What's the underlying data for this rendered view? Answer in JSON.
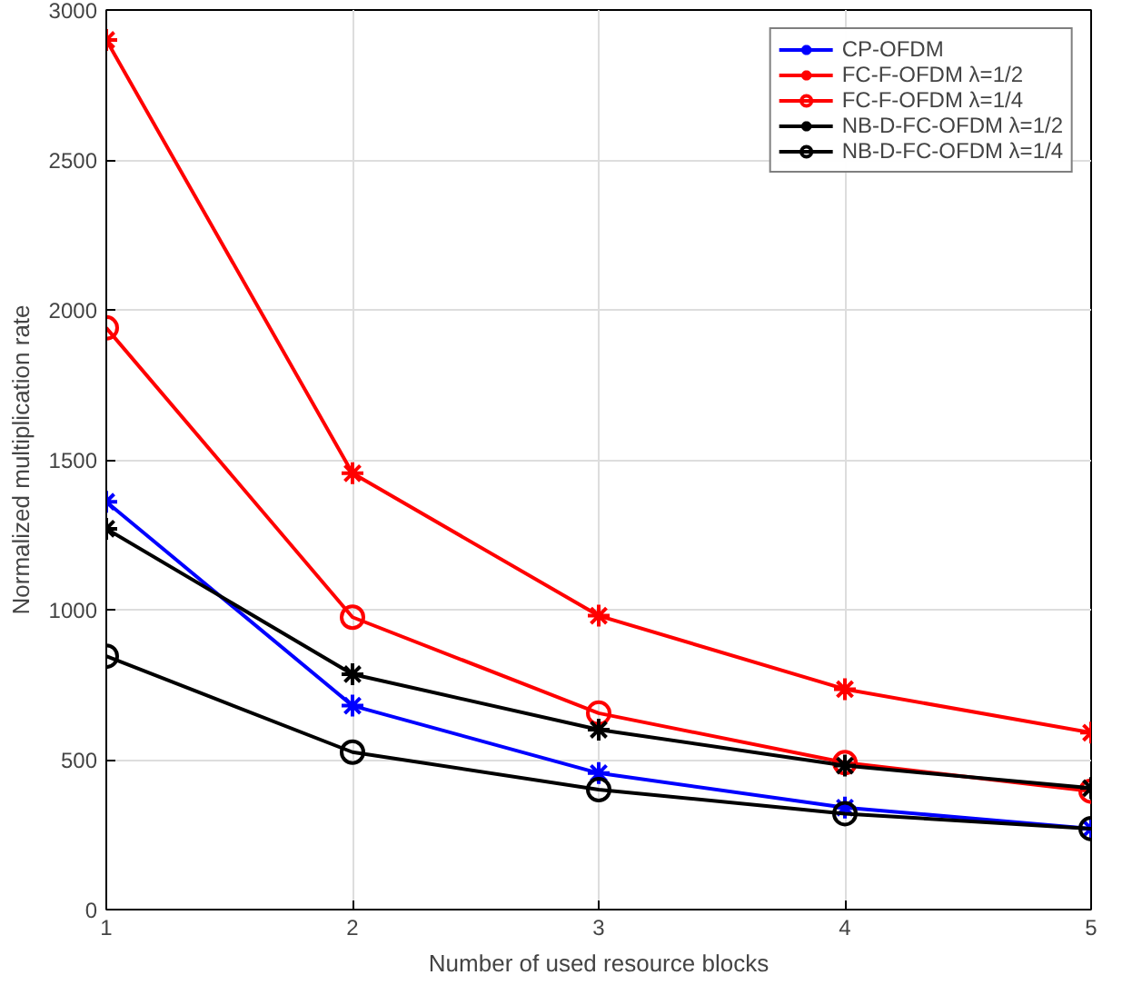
{
  "chart_data": {
    "type": "line",
    "xlabel": "Number of used resource blocks",
    "ylabel": "Normalized multiplication rate",
    "x": [
      1,
      2,
      3,
      4,
      5
    ],
    "xlim": [
      1,
      5
    ],
    "xticks": [
      1,
      2,
      3,
      4,
      5
    ],
    "ylim": [
      0,
      3000
    ],
    "yticks": [
      0,
      500,
      1000,
      1500,
      2000,
      2500,
      3000
    ],
    "grid": true,
    "legend": "top right",
    "line_style": "solid",
    "series": [
      {
        "name": "CP-OFDM",
        "color": "#0000ff",
        "marker": "cross",
        "values": [
          1360,
          680,
          455,
          340,
          270
        ]
      },
      {
        "name": "FC-F-OFDM λ=1/2",
        "color": "#ff0000",
        "marker": "cross",
        "values": [
          2900,
          1455,
          980,
          735,
          590
        ]
      },
      {
        "name": "FC-F-OFDM λ=1/4",
        "color": "#ff0000",
        "marker": "circle",
        "values": [
          1940,
          975,
          655,
          490,
          395
        ]
      },
      {
        "name": "NB-D-FC-OFDM λ=1/2",
        "color": "#000000",
        "marker": "cross",
        "values": [
          1270,
          785,
          600,
          480,
          405
        ]
      },
      {
        "name": "NB-D-FC-OFDM λ=1/4",
        "color": "#000000",
        "marker": "circle",
        "values": [
          845,
          525,
          400,
          320,
          270
        ]
      }
    ]
  }
}
